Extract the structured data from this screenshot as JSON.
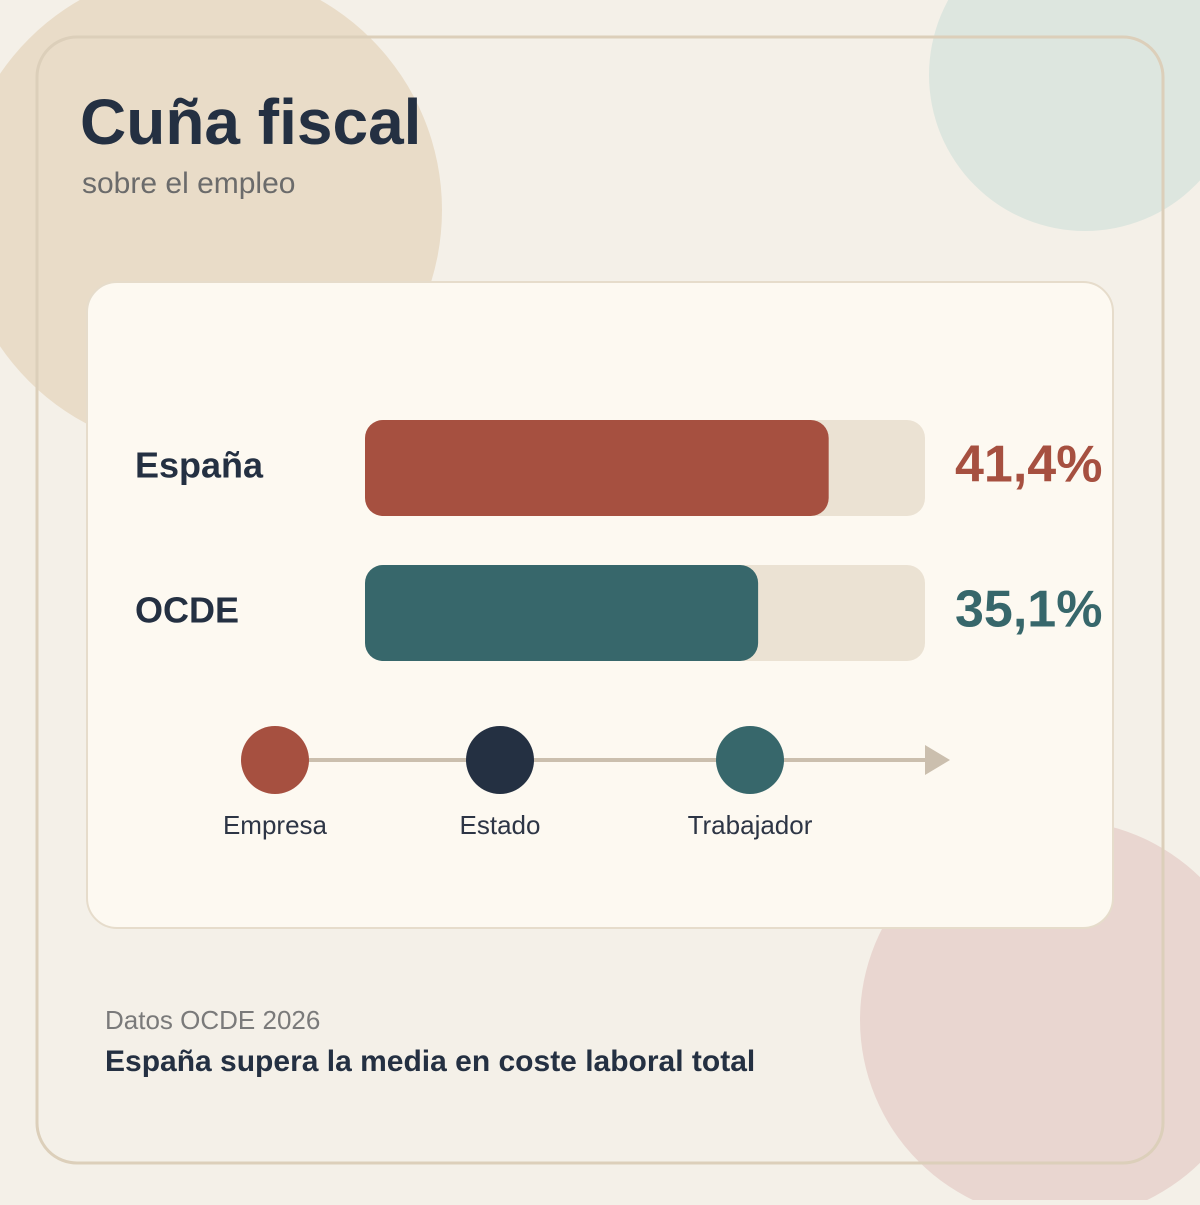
{
  "header": {
    "title": "Cuña fiscal",
    "subtitle": "sobre el empleo"
  },
  "chart_data": {
    "type": "bar",
    "categories": [
      "España",
      "OCDE"
    ],
    "values": [
      41.4,
      35.1
    ],
    "value_labels": [
      "41,4%",
      "35,1%"
    ],
    "colors": [
      "#a65040",
      "#37676b"
    ],
    "track_color": "#ebe2d3",
    "xlim": [
      0,
      50
    ]
  },
  "flow": {
    "steps": [
      {
        "label": "Empresa",
        "color": "#a65040"
      },
      {
        "label": "Estado",
        "color": "#243042"
      },
      {
        "label": "Trabajador",
        "color": "#37676b"
      }
    ]
  },
  "footer": {
    "source": "Datos OCDE 2026",
    "note": "España supera la media en coste laboral total"
  }
}
